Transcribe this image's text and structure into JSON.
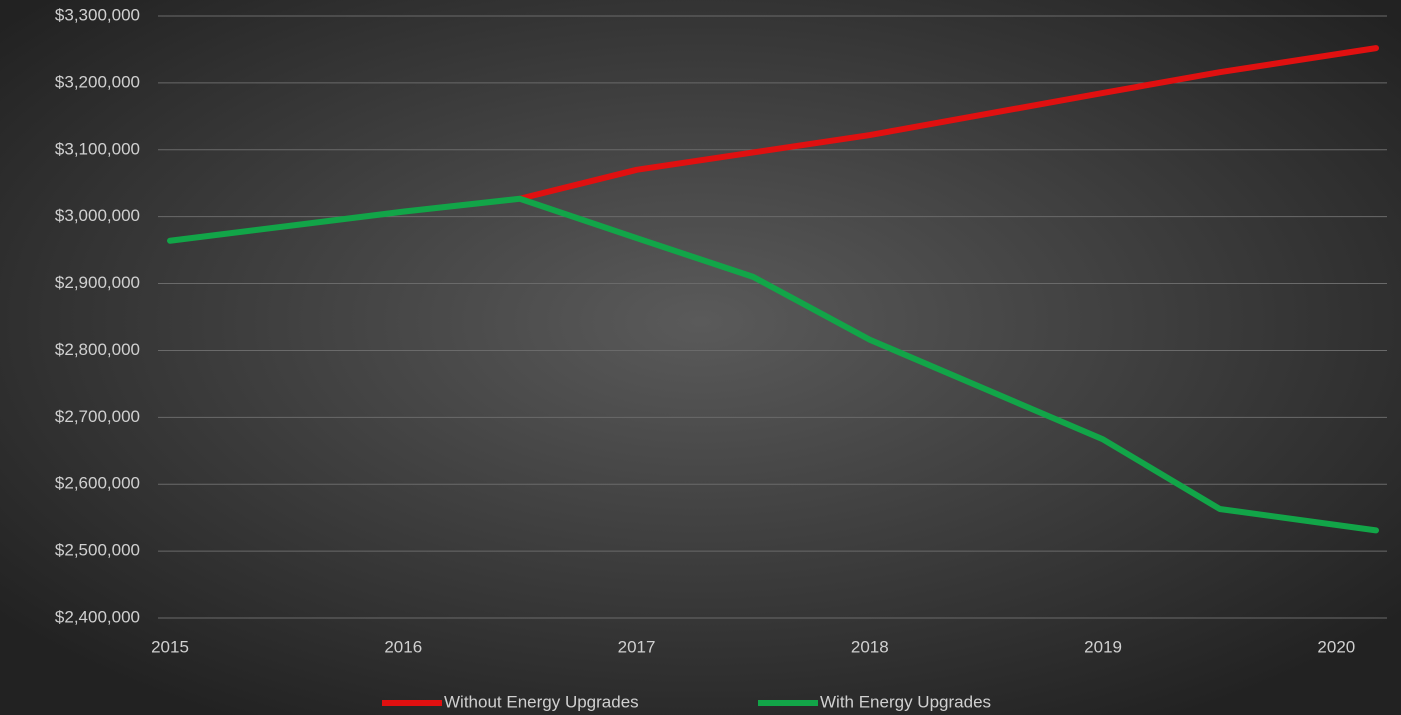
{
  "chart_data": {
    "type": "line",
    "x": [
      2015,
      2016,
      2016.5,
      2017,
      2017.5,
      2018,
      2019,
      2019.5,
      2020.17
    ],
    "series": [
      {
        "name": "Without Energy Upgrades",
        "color": "#e01010",
        "values": [
          null,
          null,
          3026800,
          3070000,
          3096000,
          3122000,
          3185000,
          3216000,
          3252000
        ]
      },
      {
        "name": "With Energy Upgrades",
        "color": "#12a548",
        "values": [
          2964000,
          3007500,
          3026800,
          2968000,
          2910000,
          2816000,
          2667000,
          2563000,
          2531000
        ]
      }
    ],
    "xlim": [
      2015,
      2020.2
    ],
    "xticks": [
      2015,
      2016,
      2017,
      2018,
      2019,
      2020
    ],
    "ylim": [
      2400000,
      3300000
    ],
    "yticks": [
      {
        "value": 2400000,
        "label": "$2,400,000"
      },
      {
        "value": 2500000,
        "label": "$2,500,000"
      },
      {
        "value": 2600000,
        "label": "$2,600,000"
      },
      {
        "value": 2700000,
        "label": "$2,700,000"
      },
      {
        "value": 2800000,
        "label": "$2,800,000"
      },
      {
        "value": 2900000,
        "label": "$2,900,000"
      },
      {
        "value": 3000000,
        "label": "$3,000,000"
      },
      {
        "value": 3100000,
        "label": "$3,100,000"
      },
      {
        "value": 3200000,
        "label": "$3,200,000"
      },
      {
        "value": 3300000,
        "label": "$3,300,000"
      }
    ],
    "grid": true,
    "legend": "bottom"
  }
}
